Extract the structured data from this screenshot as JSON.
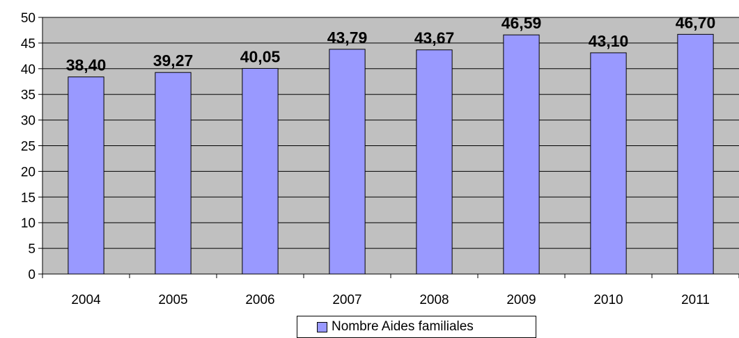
{
  "chart_data": {
    "type": "bar",
    "categories": [
      "2004",
      "2005",
      "2006",
      "2007",
      "2008",
      "2009",
      "2010",
      "2011"
    ],
    "series": [
      {
        "name": "Nombre Aides familiales",
        "values": [
          38.4,
          39.27,
          40.05,
          43.79,
          43.67,
          46.59,
          43.1,
          46.7
        ],
        "labels": [
          "38,40",
          "39,27",
          "40,05",
          "43,79",
          "43,67",
          "46,59",
          "43,10",
          "46,70"
        ]
      }
    ],
    "ylim": [
      0,
      50
    ],
    "yticks": [
      0,
      5,
      10,
      15,
      20,
      25,
      30,
      35,
      40,
      45,
      50
    ],
    "grid": true,
    "legend": "bottom",
    "colors": {
      "plot_bg": "#c0c0c0",
      "bar": "#9999ff",
      "grid": "#000000"
    }
  }
}
